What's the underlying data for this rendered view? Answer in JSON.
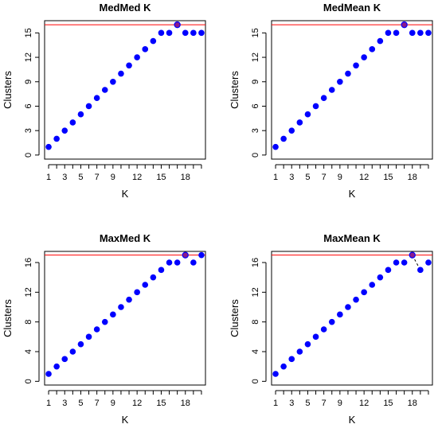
{
  "colors": {
    "points": "#0000ff",
    "reference_line": "#ff0000",
    "highlight_fill": "#8b1a8b",
    "axis": "#000000"
  },
  "chart_data": [
    {
      "type": "scatter",
      "title": "MedMed K",
      "xlabel": "K",
      "ylabel": "Clusters",
      "x": [
        1,
        2,
        3,
        4,
        5,
        6,
        7,
        8,
        9,
        10,
        11,
        12,
        13,
        14,
        15,
        16,
        17,
        18,
        19,
        20
      ],
      "y": [
        1,
        2,
        3,
        4,
        5,
        6,
        7,
        8,
        9,
        10,
        11,
        12,
        13,
        14,
        15,
        15,
        16,
        15,
        15,
        15
      ],
      "highlight_x": 17,
      "hline": 16,
      "xlim": [
        0.5,
        20.5
      ],
      "ylim": [
        -0.5,
        16.5
      ],
      "xticks": [
        1,
        3,
        5,
        7,
        9,
        12,
        15,
        18
      ],
      "yticks": [
        0,
        3,
        6,
        9,
        12,
        15
      ],
      "segments": []
    },
    {
      "type": "scatter",
      "title": "MedMean K",
      "xlabel": "K",
      "ylabel": "Clusters",
      "x": [
        1,
        2,
        3,
        4,
        5,
        6,
        7,
        8,
        9,
        10,
        11,
        12,
        13,
        14,
        15,
        16,
        17,
        18,
        19,
        20
      ],
      "y": [
        1,
        2,
        3,
        4,
        5,
        6,
        7,
        8,
        9,
        10,
        11,
        12,
        13,
        14,
        15,
        15,
        16,
        15,
        15,
        15
      ],
      "highlight_x": 17,
      "hline": 16,
      "xlim": [
        0.5,
        20.5
      ],
      "ylim": [
        -0.5,
        16.5
      ],
      "xticks": [
        1,
        3,
        5,
        7,
        9,
        12,
        15,
        18
      ],
      "yticks": [
        0,
        3,
        6,
        9,
        12,
        15
      ],
      "segments": []
    },
    {
      "type": "scatter",
      "title": "MaxMed K",
      "xlabel": "K",
      "ylabel": "Clusters",
      "x": [
        1,
        2,
        3,
        4,
        5,
        6,
        7,
        8,
        9,
        10,
        11,
        12,
        13,
        14,
        15,
        16,
        17,
        18,
        19,
        20
      ],
      "y": [
        1,
        2,
        3,
        4,
        5,
        6,
        7,
        8,
        9,
        10,
        11,
        12,
        13,
        14,
        15,
        16,
        16,
        17,
        16,
        17
      ],
      "highlight_x": 18,
      "hline": 17,
      "xlim": [
        0.5,
        20.5
      ],
      "ylim": [
        -0.5,
        17.5
      ],
      "xticks": [
        1,
        3,
        5,
        7,
        9,
        12,
        15,
        18
      ],
      "yticks": [
        0,
        4,
        8,
        12,
        16
      ],
      "segments": []
    },
    {
      "type": "scatter",
      "title": "MaxMean K",
      "xlabel": "K",
      "ylabel": "Clusters",
      "x": [
        1,
        2,
        3,
        4,
        5,
        6,
        7,
        8,
        9,
        10,
        11,
        12,
        13,
        14,
        15,
        16,
        17,
        18,
        19,
        20
      ],
      "y": [
        1,
        2,
        3,
        4,
        5,
        6,
        7,
        8,
        9,
        10,
        11,
        12,
        13,
        14,
        15,
        16,
        16,
        17,
        15,
        16
      ],
      "highlight_x": 18,
      "hline": 17,
      "xlim": [
        0.5,
        20.5
      ],
      "ylim": [
        -0.5,
        17.5
      ],
      "xticks": [
        1,
        3,
        5,
        7,
        9,
        12,
        15,
        18
      ],
      "yticks": [
        0,
        4,
        8,
        12,
        16
      ],
      "segments": [
        [
          18,
          17,
          19,
          15
        ]
      ]
    }
  ]
}
